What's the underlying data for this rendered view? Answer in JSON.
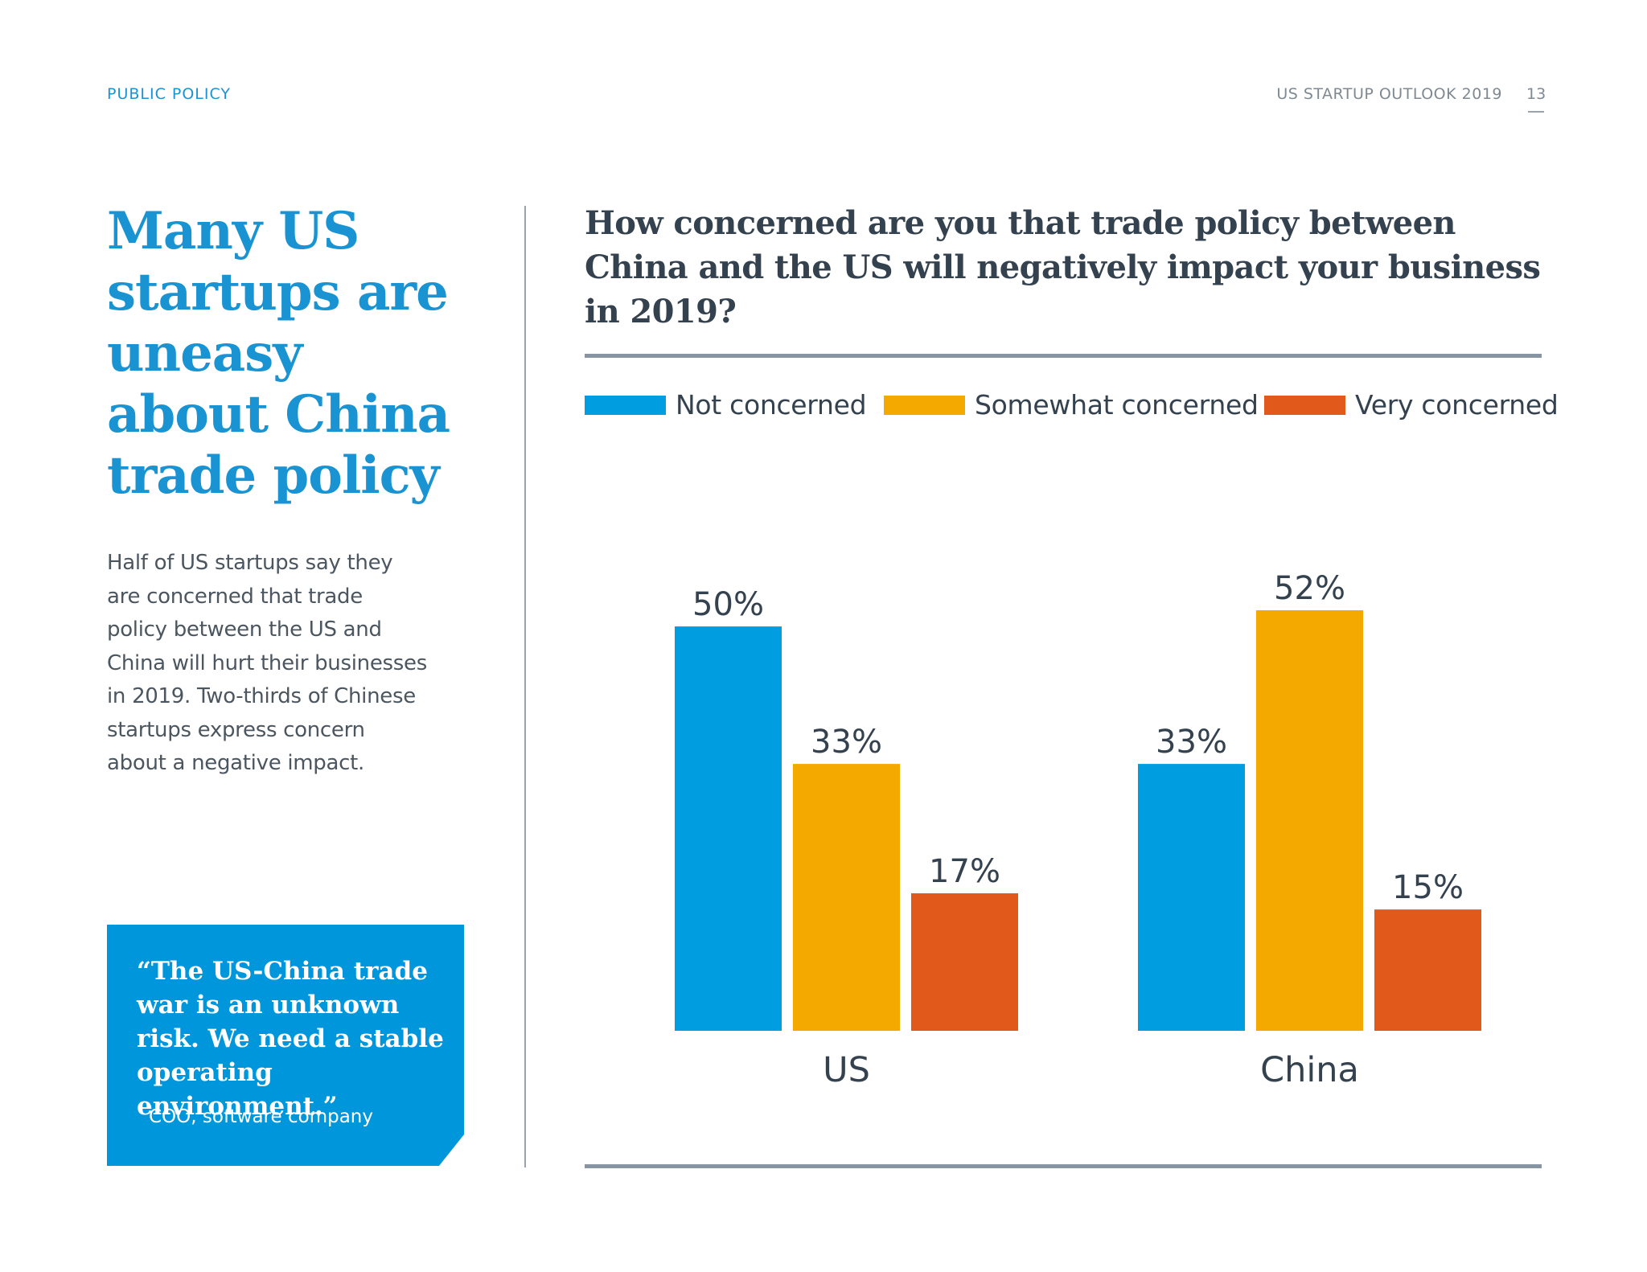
{
  "header": {
    "section": "PUBLIC POLICY",
    "report_title": "US STARTUP OUTLOOK 2019",
    "page_number": "13"
  },
  "headline": "Many US startups are uneasy about China trade policy",
  "summary": "Half of US startups say they are concerned that trade policy between the US and China will hurt their businesses in 2019. Two-thirds of Chinese startups express concern about a negative impact.",
  "quote": {
    "text": "“The US-China trade\n war is an unknown\n risk. We need a stable\n operating environment.”",
    "attribution": "COO, software company"
  },
  "chart_data": {
    "type": "bar",
    "title": "How concerned are you that trade policy between China and the US will negatively impact your business in 2019?",
    "categories": [
      "US",
      "China"
    ],
    "series": [
      {
        "name": "Not concerned",
        "color": "#009de0",
        "values": [
          50,
          33
        ],
        "labels": [
          "50%",
          "33%"
        ]
      },
      {
        "name": "Somewhat concerned",
        "color": "#f4a900",
        "values": [
          33,
          52
        ],
        "labels": [
          "33%",
          "52%"
        ]
      },
      {
        "name": "Very concerned",
        "color": "#e1591b",
        "values": [
          17,
          15
        ],
        "labels": [
          "17%",
          "15%"
        ]
      }
    ],
    "ylim": [
      0,
      52
    ],
    "legend": "top",
    "grid": false
  }
}
